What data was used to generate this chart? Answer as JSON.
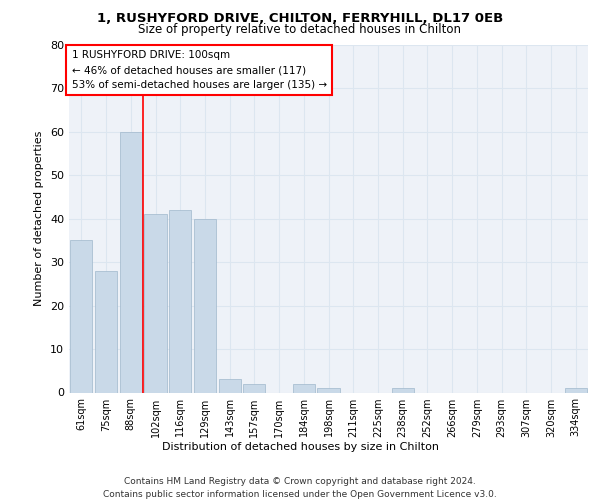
{
  "title_line1": "1, RUSHYFORD DRIVE, CHILTON, FERRYHILL, DL17 0EB",
  "title_line2": "Size of property relative to detached houses in Chilton",
  "xlabel": "Distribution of detached houses by size in Chilton",
  "ylabel": "Number of detached properties",
  "bar_labels": [
    "61sqm",
    "75sqm",
    "88sqm",
    "102sqm",
    "116sqm",
    "129sqm",
    "143sqm",
    "157sqm",
    "170sqm",
    "184sqm",
    "198sqm",
    "211sqm",
    "225sqm",
    "238sqm",
    "252sqm",
    "266sqm",
    "279sqm",
    "293sqm",
    "307sqm",
    "320sqm",
    "334sqm"
  ],
  "bar_values": [
    35,
    28,
    60,
    41,
    42,
    40,
    3,
    2,
    0,
    2,
    1,
    0,
    0,
    1,
    0,
    0,
    0,
    0,
    0,
    0,
    1
  ],
  "bar_color": "#c9d9e8",
  "bar_edge_color": "#a0b8cc",
  "vline_x": 2.5,
  "vline_color": "red",
  "annotation_text": "1 RUSHYFORD DRIVE: 100sqm\n← 46% of detached houses are smaller (117)\n53% of semi-detached houses are larger (135) →",
  "annotation_box_color": "white",
  "annotation_box_edge": "red",
  "ylim": [
    0,
    80
  ],
  "yticks": [
    0,
    10,
    20,
    30,
    40,
    50,
    60,
    70,
    80
  ],
  "grid_color": "#dce6f0",
  "background_color": "#eef2f8",
  "footnote": "Contains HM Land Registry data © Crown copyright and database right 2024.\nContains public sector information licensed under the Open Government Licence v3.0.",
  "fig_bg": "#ffffff"
}
